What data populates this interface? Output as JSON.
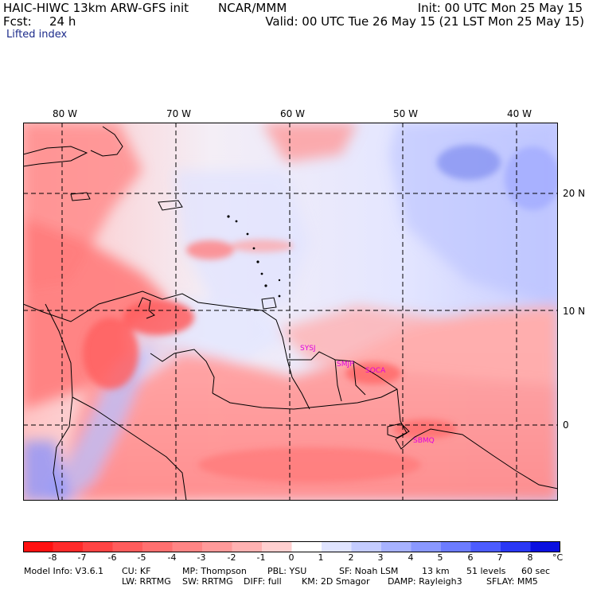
{
  "header": {
    "model_title": "HAIC-HIWC 13km ARW-GFS init",
    "org": "NCAR/MMM",
    "init": "Init: 00 UTC Mon 25 May 15",
    "fcst_label": "Fcst:",
    "fcst_value": "24 h",
    "valid": "Valid: 00 UTC Tue 26 May 15 (21 LST Mon 25 May 15)",
    "field": "Lifted index"
  },
  "map": {
    "lon_labels": [
      "80 W",
      "70 W",
      "60 W",
      "50 W",
      "40 W"
    ],
    "lat_labels": [
      "20 N",
      "10 N",
      "0"
    ],
    "stations": [
      "SYSJ",
      "SMJP",
      "SOCA",
      "SBMQ"
    ],
    "colors": {
      "station": "#e000e0",
      "coast": "#000000",
      "grid": "#000000"
    }
  },
  "colorbar": {
    "ticks": [
      "-8",
      "-7",
      "-6",
      "-5",
      "-4",
      "-3",
      "-2",
      "-1",
      "0",
      "1",
      "2",
      "3",
      "4",
      "5",
      "6",
      "7",
      "8"
    ],
    "unit": "°C",
    "colors": [
      "#ff1010",
      "#ff2a2a",
      "#ff4444",
      "#ff5c5c",
      "#ff7070",
      "#ff8585",
      "#ff9a9a",
      "#ffb2b2",
      "#ffd0d0",
      "#ffffff",
      "#e0e4ff",
      "#c4ccff",
      "#a7b2ff",
      "#8a98ff",
      "#6c7cff",
      "#4c5cff",
      "#2a38f5",
      "#0a10e0"
    ]
  },
  "footer": {
    "line1": {
      "model_info": "Model Info: V3.6.1",
      "cu": "CU: KF",
      "mp": "MP: Thompson",
      "pbl": "PBL: YSU",
      "sf": "SF: Noah LSM",
      "res": "13 km",
      "levels": "51 levels",
      "dt": "60 sec"
    },
    "line2": {
      "lw": "LW: RRTMG",
      "sw": "SW: RRTMG",
      "diff": "DIFF: full",
      "km": "KM: 2D Smagor",
      "damp": "DAMP: Rayleigh3",
      "sflay": "SFLAY: MM5"
    }
  }
}
